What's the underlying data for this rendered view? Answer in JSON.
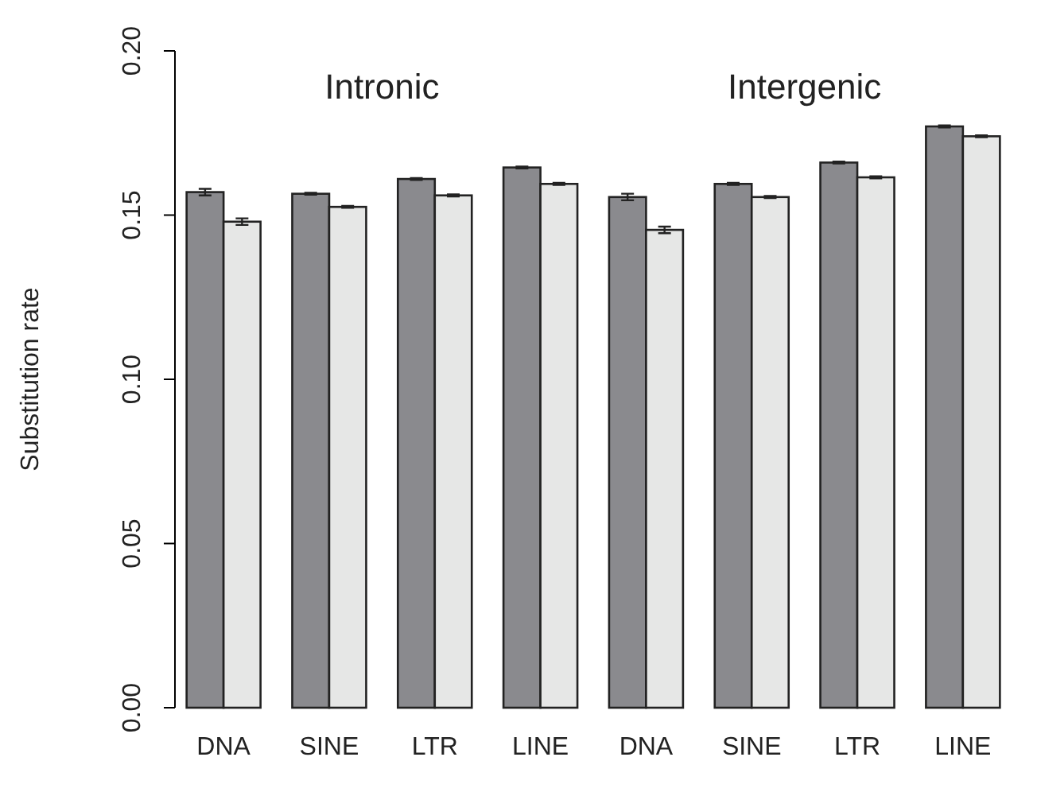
{
  "chart_data": {
    "type": "bar",
    "ylabel": "Substitution rate",
    "categories": [
      "DNA",
      "SINE",
      "LTR",
      "LINE",
      "DNA",
      "SINE",
      "LTR",
      "LINE"
    ],
    "series": [
      {
        "color": "#8a8a8e",
        "values": [
          0.157,
          0.1565,
          0.161,
          0.1645,
          0.1555,
          0.1595,
          0.166,
          0.177
        ],
        "errors": [
          0.001,
          0.0003,
          0.0003,
          0.0003,
          0.001,
          0.0003,
          0.0003,
          0.0003
        ]
      },
      {
        "color": "#e6e7e6",
        "values": [
          0.148,
          0.1525,
          0.156,
          0.1595,
          0.1455,
          0.1555,
          0.1615,
          0.174
        ],
        "errors": [
          0.001,
          0.0003,
          0.0003,
          0.0003,
          0.001,
          0.0003,
          0.0003,
          0.0003
        ]
      }
    ],
    "ylim": [
      0,
      0.2
    ],
    "yticks": [
      {
        "value": 0,
        "label": "0.00"
      },
      {
        "value": 0.05,
        "label": "0.05"
      },
      {
        "value": 0.1,
        "label": "0.10"
      },
      {
        "value": 0.15,
        "label": "0.15"
      },
      {
        "value": 0.2,
        "label": "0.20"
      }
    ],
    "annotations": [
      "Intronic",
      "Intergenic"
    ],
    "grid": false,
    "legend": false
  }
}
